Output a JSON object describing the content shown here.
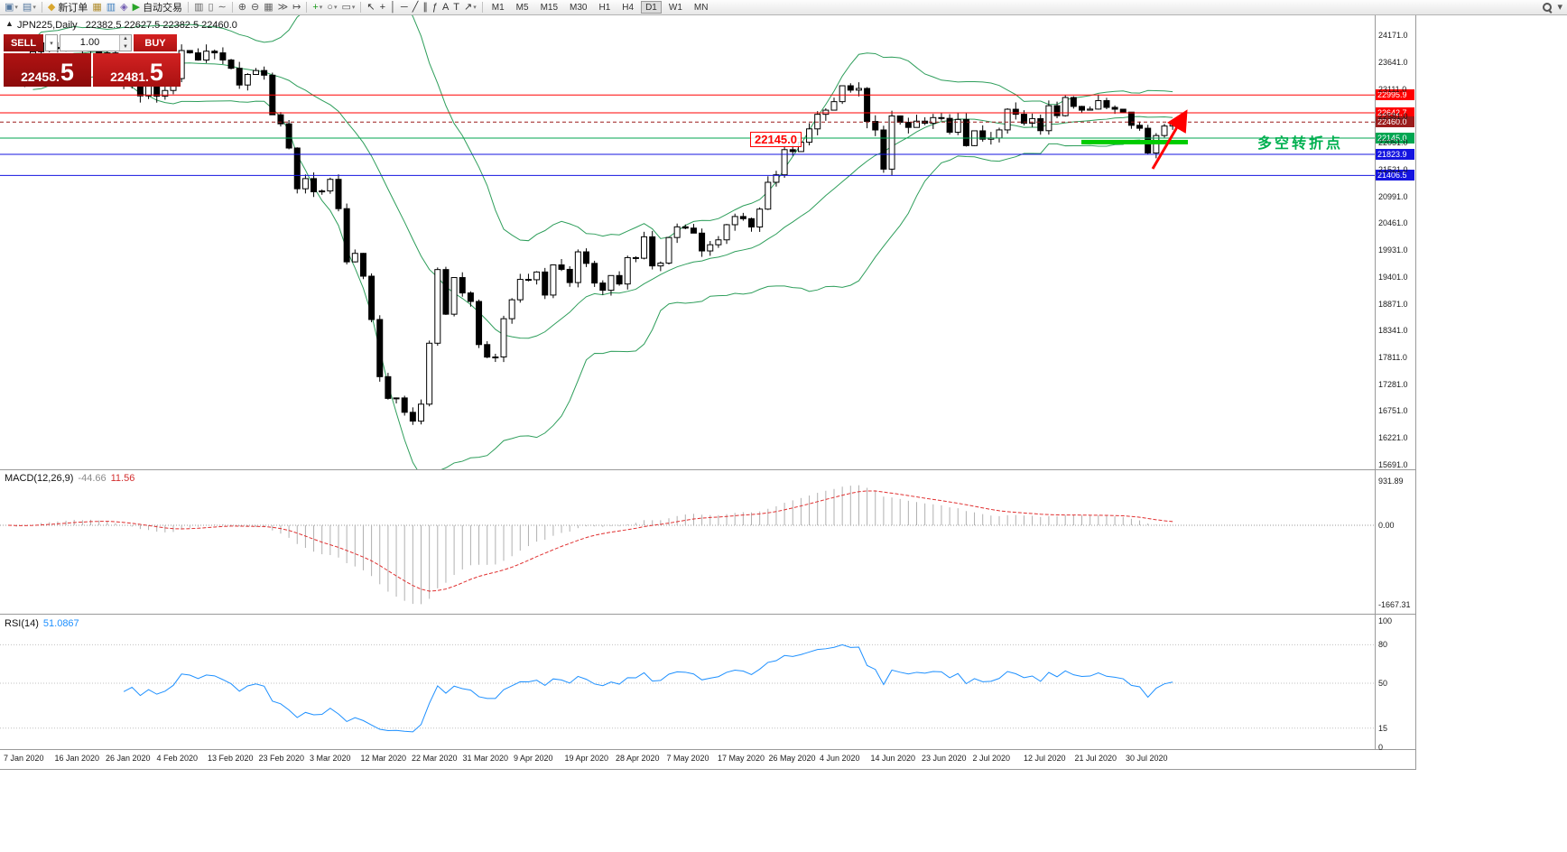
{
  "toolbar": {
    "new_order_label": "新订单",
    "autotrading_label": "自动交易",
    "timeframes": [
      "M1",
      "M5",
      "M15",
      "M30",
      "H1",
      "H4",
      "D1",
      "W1",
      "MN"
    ],
    "active_timeframe": "D1",
    "items": [
      {
        "t": "icon",
        "name": "new-chart-button",
        "g": "▣",
        "c": "#54779f",
        "caret": true
      },
      {
        "t": "icon",
        "name": "profiles-button",
        "g": "▤",
        "c": "#54779f",
        "caret": true
      },
      {
        "t": "sep"
      },
      {
        "t": "icon",
        "name": "new-order-button",
        "g": "◆",
        "c": "#d9a62e",
        "label": "新订单"
      },
      {
        "t": "icon",
        "name": "market-watch-button",
        "g": "▦",
        "c": "#b08c2c"
      },
      {
        "t": "icon",
        "name": "data-window-button",
        "g": "▥",
        "c": "#3f7fbf"
      },
      {
        "t": "icon",
        "name": "navigator-button",
        "g": "◈",
        "c": "#6f5ab0"
      },
      {
        "t": "icon",
        "name": "autotrading-button",
        "g": "▶",
        "c": "#2aa52a",
        "label": "自动交易"
      },
      {
        "t": "sep"
      },
      {
        "t": "icon",
        "name": "bar-chart-button",
        "g": "▥",
        "c": "#666666"
      },
      {
        "t": "icon",
        "name": "candlestick-chart-button",
        "g": "▯",
        "c": "#666666"
      },
      {
        "t": "icon",
        "name": "line-chart-button",
        "g": "∼",
        "c": "#666666"
      },
      {
        "t": "sep"
      },
      {
        "t": "icon",
        "name": "zoom-in-button",
        "g": "⊕",
        "c": "#555555"
      },
      {
        "t": "icon",
        "name": "zoom-out-button",
        "g": "⊖",
        "c": "#555555"
      },
      {
        "t": "icon",
        "name": "tile-windows-button",
        "g": "▦",
        "c": "#666666"
      },
      {
        "t": "icon",
        "name": "auto-scroll-button",
        "g": "≫",
        "c": "#555555"
      },
      {
        "t": "icon",
        "name": "chart-shift-button",
        "g": "↦",
        "c": "#555555"
      },
      {
        "t": "sep"
      },
      {
        "t": "icon",
        "name": "indicators-button",
        "g": "+",
        "c": "#1d9b1d",
        "caret": true
      },
      {
        "t": "icon",
        "name": "periods-button",
        "g": "○",
        "c": "#555555",
        "caret": true
      },
      {
        "t": "icon",
        "name": "templates-button",
        "g": "▭",
        "c": "#555555",
        "caret": true
      },
      {
        "t": "sep"
      },
      {
        "t": "icon",
        "name": "cursor-button",
        "g": "↖",
        "c": "#333333"
      },
      {
        "t": "icon",
        "name": "crosshair-button",
        "g": "+",
        "c": "#333333"
      },
      {
        "t": "icon",
        "name": "vertical-line-button",
        "g": "│",
        "c": "#333333"
      },
      {
        "t": "icon",
        "name": "horizontal-line-button",
        "g": "─",
        "c": "#333333"
      },
      {
        "t": "icon",
        "name": "trendline-button",
        "g": "╱",
        "c": "#333333"
      },
      {
        "t": "icon",
        "name": "channel-button",
        "g": "∥",
        "c": "#333333"
      },
      {
        "t": "icon",
        "name": "fibonacci-button",
        "g": "ƒ",
        "c": "#333333"
      },
      {
        "t": "icon",
        "name": "text-button",
        "g": "A",
        "c": "#333333"
      },
      {
        "t": "icon",
        "name": "text-label-button",
        "g": "T",
        "c": "#333333"
      },
      {
        "t": "icon",
        "name": "arrows-button",
        "g": "↗",
        "c": "#333333",
        "caret": true
      },
      {
        "t": "sep"
      },
      {
        "t": "tf"
      },
      {
        "t": "spacer"
      },
      {
        "t": "mag",
        "name": "search-button"
      },
      {
        "t": "icon",
        "name": "toolbar-overflow-button",
        "g": "▾",
        "c": "#555555"
      }
    ]
  },
  "chart": {
    "collapse_icon": "▲",
    "symbol_title": "JPN225,Daily",
    "ohlc_text": "22382.5 22627.5 22382.5 22460.0",
    "trade_panel": {
      "sell_label": "SELL",
      "buy_label": "BUY",
      "volume": "1.00",
      "sell_price": "22458.5",
      "buy_price": "22481.5"
    },
    "annotations": {
      "price_callout": "22145.0",
      "note_text": "多空转折点",
      "note_color": "#00b050",
      "segment_color": "#00cc00",
      "arrow_color": "#ff0000"
    }
  },
  "indicators": {
    "macd": {
      "title": "MACD(12,26,9)",
      "main_value": "-44.66",
      "signal_value": "11.56",
      "scale_labels": [
        "931.89",
        "0.00",
        "-1667.31"
      ]
    },
    "rsi": {
      "title": "RSI(14)",
      "value": "51.0867",
      "scale_labels": [
        "100",
        "80",
        "50",
        "15",
        "0"
      ],
      "level_lines": [
        80,
        50,
        15
      ]
    }
  },
  "chart_data": {
    "type": "candlestick",
    "symbol": "JPN225",
    "period": "Daily",
    "current_ohlc": {
      "open": 22382.5,
      "high": 22627.5,
      "low": 22382.5,
      "close": 22460.0
    },
    "bid": 22458.5,
    "ask": 22481.5,
    "overlays": [
      {
        "name": "Bollinger Bands",
        "period": 20,
        "deviation": 2,
        "color": "#2e9e5b"
      }
    ],
    "levels": [
      {
        "value": 22995.9,
        "label": "22995.9",
        "color": "#ff0000",
        "style": "solid",
        "name": "resistance-line-1"
      },
      {
        "value": 22642.7,
        "label": "22642.7",
        "color": "#ff0000",
        "style": "solid",
        "name": "resistance-line-2"
      },
      {
        "value": 22460.0,
        "label": "22460.0",
        "color": "#9b1c1c",
        "style": "dashed",
        "name": "bid-price-line"
      },
      {
        "value": 22145.0,
        "label": "22145.0",
        "color": "#00a651",
        "style": "solid",
        "name": "pivot-line"
      },
      {
        "value": 21823.9,
        "label": "21823.9",
        "color": "#1414e0",
        "style": "solid",
        "name": "support-line-1"
      },
      {
        "value": 21406.5,
        "label": "21406.5",
        "color": "#1414e0",
        "style": "solid",
        "name": "support-line-2"
      }
    ],
    "y_ticks": [
      24171.0,
      23641.0,
      23111.0,
      22581.0,
      22051.0,
      21521.0,
      20991.0,
      20461.0,
      19931.0,
      19401.0,
      18871.0,
      18341.0,
      17811.0,
      17281.0,
      16751.0,
      16221.0,
      15691.0
    ],
    "x_tick_labels": [
      "7 Jan 2020",
      "16 Jan 2020",
      "26 Jan 2020",
      "4 Feb 2020",
      "13 Feb 2020",
      "23 Feb 2020",
      "3 Mar 2020",
      "12 Mar 2020",
      "22 Mar 2020",
      "31 Mar 2020",
      "9 Apr 2020",
      "19 Apr 2020",
      "28 Apr 2020",
      "7 May 2020",
      "17 May 2020",
      "26 May 2020",
      "4 Jun 2020",
      "14 Jun 2020",
      "23 Jun 2020",
      "2 Jul 2020",
      "12 Jul 2020",
      "21 Jul 2020",
      "30 Jul 2020"
    ],
    "closes": [
      23575,
      23204,
      23740,
      23850,
      24025,
      23917,
      23933,
      24041,
      24084,
      23864,
      24031,
      23795,
      23827,
      23344,
      23216,
      23379,
      22978,
      23205,
      22972,
      23085,
      23320,
      23874,
      23828,
      23686,
      23861,
      23828,
      23687,
      23523,
      23193,
      23401,
      23479,
      23387,
      22605,
      22426,
      21948,
      21143,
      21344,
      21083,
      21100,
      21329,
      20750,
      19699,
      19867,
      19416,
      18560,
      17431,
      17002,
      17011,
      16727,
      16553,
      16888,
      18092,
      19547,
      18665,
      19389,
      19085,
      18917,
      18065,
      17818,
      17820,
      18576,
      18950,
      19353,
      19346,
      19499,
      19043,
      19639,
      19551,
      19290,
      19897,
      19669,
      19281,
      19138,
      19429,
      19262,
      19783,
      19771,
      20194,
      19619,
      19675,
      20180,
      20391,
      20366,
      20267,
      19915,
      20037,
      20134,
      20433,
      20595,
      20552,
      20388,
      20741,
      21271,
      21419,
      21916,
      21878,
      22062,
      22326,
      22614,
      22696,
      22864,
      23178,
      23091,
      23125,
      22473,
      22305,
      21531,
      22582,
      22456,
      22355,
      22479,
      22437,
      22549,
      22534,
      22260,
      22512,
      21995,
      22288,
      22122,
      22146,
      22306,
      22714,
      22615,
      22439,
      22529,
      22291,
      22784,
      22587,
      22946,
      22770,
      22696,
      22717,
      22884,
      22751,
      22715,
      22657,
      22397,
      22339,
      21850,
      22195,
      22382.5,
      22460
    ],
    "macd_scale": {
      "max": 931.89,
      "zero": 0.0,
      "min": -1667.31
    },
    "rsi_scale": [
      100,
      80,
      50,
      15,
      0
    ]
  }
}
